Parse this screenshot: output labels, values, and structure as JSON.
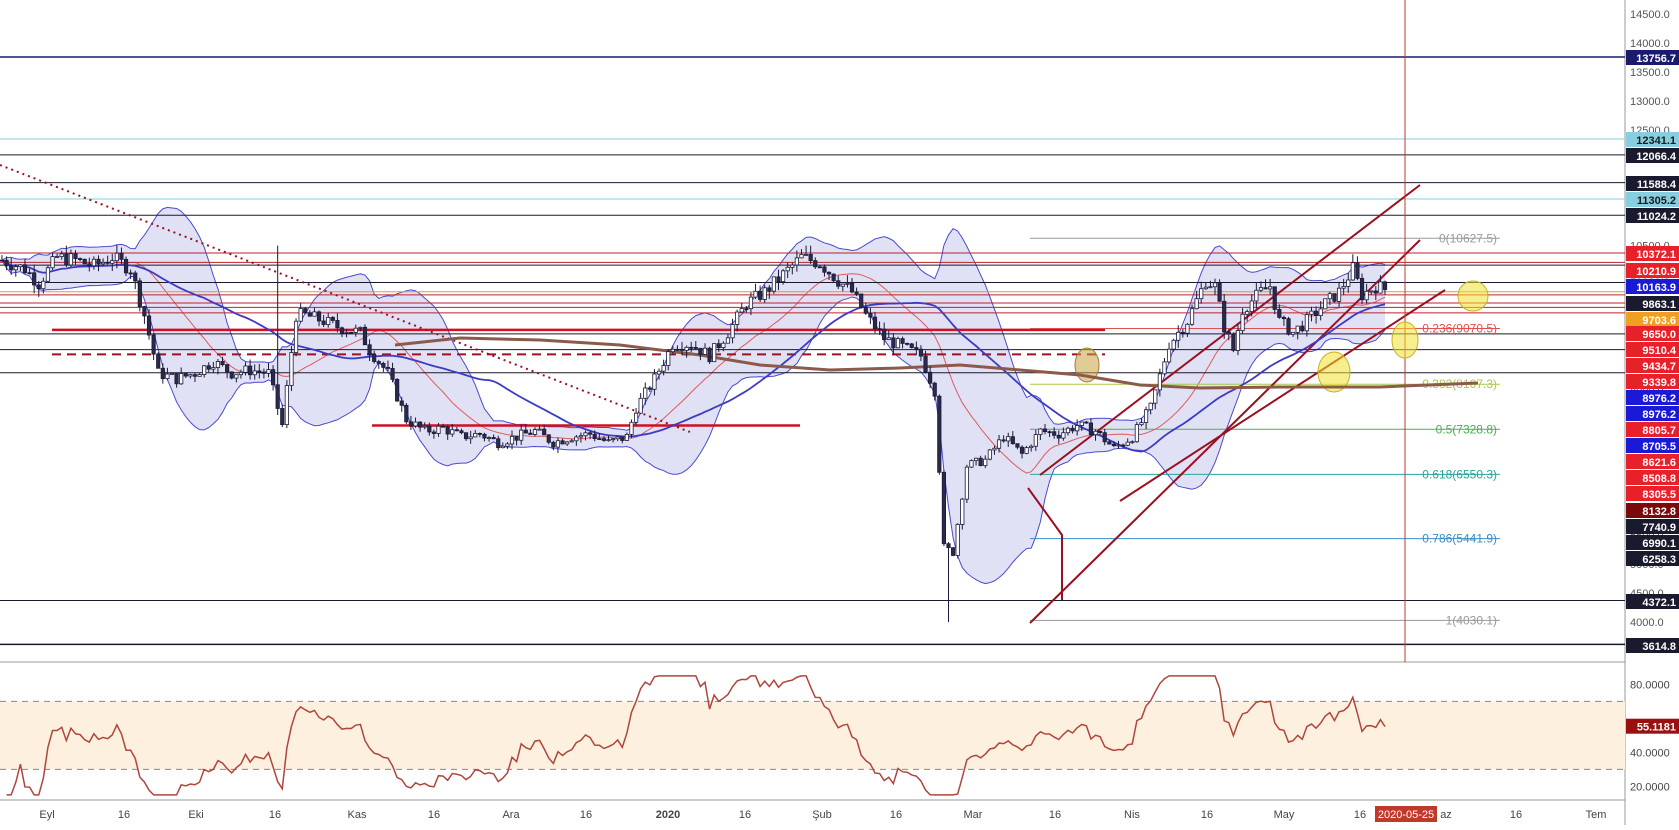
{
  "chart_data": {
    "type": "candlestick",
    "instrument_note": "BTC daily with Bollinger Bands, SMA 50 / SMA 200, Fibonacci retracement, ascending channel and RSI subpanel",
    "ylim": [
      2800,
      14900
    ],
    "price_axis_ticks": [
      3000,
      4000,
      4500,
      5000,
      5500,
      6000,
      7000,
      8000,
      8500,
      9000,
      10000,
      10500,
      12500,
      13000,
      13500,
      14000,
      14500
    ],
    "price_axis_tick_labels": [
      "3000.0",
      "4000.0",
      "4500.0",
      "5000.0",
      "5500.0",
      "6000.0",
      "7000.0",
      "8000.0",
      "8500.0",
      "9000.0",
      "10000.0",
      "10500.0",
      "12500.0",
      "13000.0",
      "13500.0",
      "14000.0",
      "14500.0"
    ],
    "x_axis_labels": [
      "Eyl",
      "16",
      "Eki",
      "16",
      "Kas",
      "16",
      "Ara",
      "16",
      "2020",
      "16",
      "Şub",
      "16",
      "Mar",
      "16",
      "Nis",
      "16",
      "May",
      "16",
      "2020-05-25",
      "az",
      "16",
      "Tem"
    ],
    "crosshair_date_label": "2020-05-25",
    "horizontal_levels": [
      {
        "value": 13756.7,
        "label": "13756.7",
        "color": "#1a1a6e",
        "text_color": "#ffffff"
      },
      {
        "value": 12341.1,
        "label": "12341.1",
        "color": "#87cfe0",
        "text_color": "#1a1a1a"
      },
      {
        "value": 12066.4,
        "label": "12066.4",
        "color": "#1a1a2e",
        "text_color": "#ffffff"
      },
      {
        "value": 11588.4,
        "label": "11588.4",
        "color": "#1a1a2e",
        "text_color": "#ffffff"
      },
      {
        "value": 11305.2,
        "label": "11305.2",
        "color": "#87cfe0",
        "text_color": "#1a1a1a"
      },
      {
        "value": 11024.2,
        "label": "11024.2",
        "color": "#1a1a2e",
        "text_color": "#ffffff"
      },
      {
        "value": 10372.1,
        "label": "10372.1",
        "color": "#e8202a",
        "text_color": "#ffffff"
      },
      {
        "value": 10210.9,
        "label": "10210.9",
        "color": "#e8202a",
        "text_color": "#ffffff"
      },
      {
        "value": 10163.9,
        "label": "10163.9",
        "color": "#1a1ad6",
        "text_color": "#ffffff"
      },
      {
        "value": 9863.1,
        "label": "9863.1",
        "color": "#1a1a2e",
        "text_color": "#ffffff"
      },
      {
        "value": 9703.6,
        "label": "9703.6",
        "color": "#f0a020",
        "text_color": "#ffffff"
      },
      {
        "value": 9650.0,
        "label": "9650.0",
        "color": "#e8202a",
        "text_color": "#ffffff"
      },
      {
        "value": 9510.4,
        "label": "9510.4",
        "color": "#e8202a",
        "text_color": "#ffffff"
      },
      {
        "value": 9434.7,
        "label": "9434.7",
        "color": "#e8202a",
        "text_color": "#ffffff"
      },
      {
        "value": 9339.8,
        "label": "9339.8",
        "color": "#e8202a",
        "text_color": "#ffffff"
      },
      {
        "value": 8976.2,
        "label": "8976.2",
        "color": "#1a1ad6",
        "text_color": "#ffffff"
      },
      {
        "value": 8976.2,
        "label": "8976.2",
        "color": "#1a1ad6",
        "text_color": "#ffffff"
      },
      {
        "value": 8805.7,
        "label": "8805.7",
        "color": "#e8202a",
        "text_color": "#ffffff"
      },
      {
        "value": 8705.5,
        "label": "8705.5",
        "color": "#1a1ad6",
        "text_color": "#ffffff"
      },
      {
        "value": 8621.6,
        "label": "8621.6",
        "color": "#e8202a",
        "text_color": "#ffffff"
      },
      {
        "value": 8508.8,
        "label": "8508.8",
        "color": "#e8202a",
        "text_color": "#ffffff"
      },
      {
        "value": 8305.5,
        "label": "8305.5",
        "color": "#e8202a",
        "text_color": "#ffffff"
      },
      {
        "value": 8132.8,
        "label": "8132.8",
        "color": "#7a0a0a",
        "text_color": "#ffffff"
      },
      {
        "value": 7740.9,
        "label": "7740.9",
        "color": "#1a1a2e",
        "text_color": "#ffffff"
      },
      {
        "value": 6990.1,
        "label": "6990.1",
        "color": "#1a1a2e",
        "text_color": "#ffffff"
      },
      {
        "value": 6258.3,
        "label": "6258.3",
        "color": "#1a1a2e",
        "text_color": "#ffffff"
      },
      {
        "value": 4372.1,
        "label": "4372.1",
        "color": "#1a1a2e",
        "text_color": "#ffffff"
      },
      {
        "value": 3614.8,
        "label": "3614.8",
        "color": "#1a1a2e",
        "text_color": "#ffffff"
      }
    ],
    "fibonacci_levels": [
      {
        "ratio": "0",
        "value": 10627.5,
        "label": "0(10627.5)",
        "color": "#999999"
      },
      {
        "ratio": "0.236",
        "value": 9070.5,
        "label": "0.236(9070.5)",
        "color": "#e05050"
      },
      {
        "ratio": "0.382",
        "value": 8107.3,
        "label": "0.382(8107.3)",
        "color": "#a8c84a"
      },
      {
        "ratio": "0.5",
        "value": 7328.8,
        "label": "0.5(7328.8)",
        "color": "#4caf50"
      },
      {
        "ratio": "0.618",
        "value": 6550.3,
        "label": "0.618(6550.3)",
        "color": "#26a69a"
      },
      {
        "ratio": "0.786",
        "value": 5441.9,
        "label": "0.786(5441.9)",
        "color": "#3a8ec8"
      },
      {
        "ratio": "1",
        "value": 4030.1,
        "label": "1(4030.1)",
        "color": "#999999"
      }
    ],
    "rsi": {
      "ylim": [
        12,
        92
      ],
      "ticks": [
        20,
        40,
        80
      ],
      "tick_labels": [
        "20.0000",
        "40.0000",
        "80.0000"
      ],
      "upper_band": 70,
      "lower_band": 30,
      "current_value": 55.1181,
      "current_label": "55.1181",
      "line_color": "#b0453b"
    },
    "series": [
      {
        "kind": "sma50",
        "color": "#3b3bc4"
      },
      {
        "kind": "sma200",
        "color": "#8b5a4a"
      },
      {
        "kind": "bollinger",
        "color": "#4a4ad0",
        "fill": "#c8c8ee"
      },
      {
        "kind": "bollinger_basis",
        "color": "#e05a5a"
      }
    ],
    "colors": {
      "candle_up": "#ffffff",
      "candle_down": "#2a2a4a",
      "candle_border": "#1a1a3a",
      "channel": "#9a1020",
      "crosshair": "#c0392b",
      "highlight_yellow": "#f0e030"
    }
  }
}
